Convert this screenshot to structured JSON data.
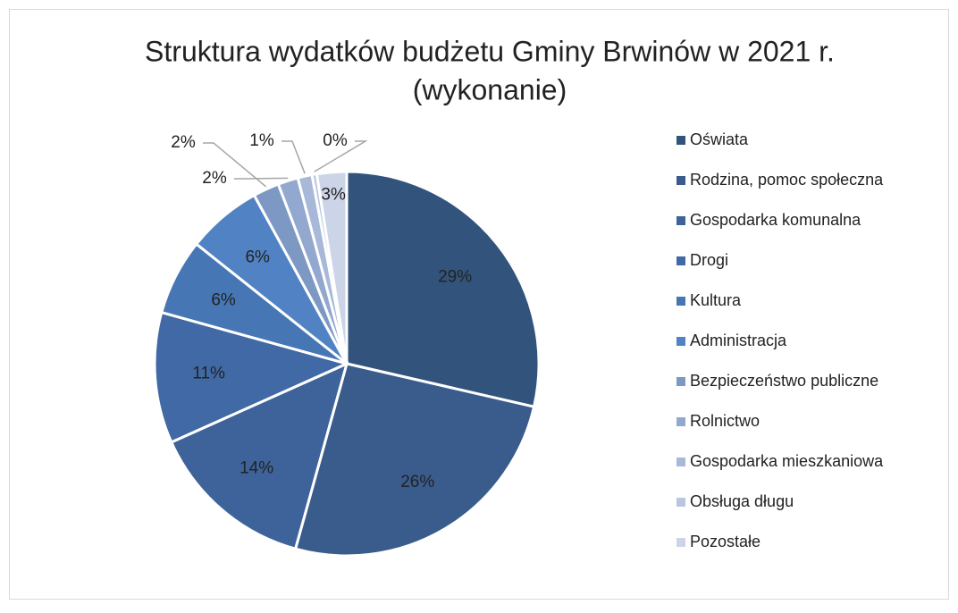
{
  "chart_data": {
    "type": "pie",
    "title": [
      "Struktura wydatków budżetu Gminy Brwinów w 2021 r.",
      "(wykonanie)"
    ],
    "categories": [
      "Oświata",
      "Rodzina, pomoc społeczna",
      "Gospodarka komunalna",
      "Drogi",
      "Kultura",
      "Administracja",
      "Bezpieczeństwo publiczne",
      "Rolnictwo",
      "Gospodarka mieszkaniowa",
      "Obsługa długu",
      "Pozostałe"
    ],
    "values": [
      28.6,
      25.7,
      14.0,
      11.0,
      6.4,
      6.3,
      2.2,
      1.7,
      1.2,
      0.4,
      2.5
    ],
    "value_labels": [
      "29%",
      "26%",
      "14%",
      "11%",
      "6%",
      "6%",
      "2%",
      "2%",
      "1%",
      "0%",
      "3%"
    ],
    "colors": [
      "#32547c",
      "#395c8c",
      "#3e639a",
      "#4169a5",
      "#4676b4",
      "#5183c4",
      "#7e98c4",
      "#93a8cf",
      "#a8b8d8",
      "#b9c6e0",
      "#ccd5e7"
    ],
    "legend": "right"
  }
}
